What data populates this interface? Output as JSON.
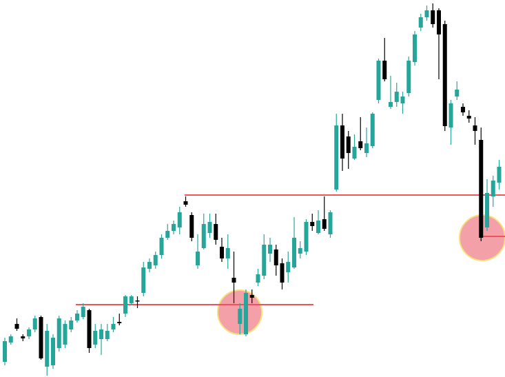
{
  "chart_data": {
    "type": "candlestick",
    "ylim": [
      0,
      547
    ],
    "up_color": "#26a69a",
    "down_color": "#000000",
    "level_color": "#f0525d",
    "open": [
      22,
      50,
      77,
      59,
      59,
      69,
      87,
      15,
      17,
      42,
      47,
      69,
      82,
      87,
      97,
      47,
      55,
      55,
      69,
      80,
      92,
      107,
      111,
      122,
      157,
      162,
      177,
      202,
      212,
      217,
      255,
      235,
      162,
      187,
      209,
      222,
      189,
      172,
      144,
      77,
      62,
      119,
      137,
      147,
      179,
      185,
      165,
      152,
      159,
      179,
      182,
      225,
      209,
      229,
      207,
      272,
      365,
      349,
      317,
      342,
      325,
      335,
      402,
      459,
      392,
      399,
      397,
      412,
      457,
      507,
      522,
      532,
      532,
      512,
      362,
      407,
      392,
      379,
      365,
      344,
      217,
      262,
      282
    ],
    "high": [
      57,
      62,
      85,
      62,
      72,
      89,
      89,
      77,
      62,
      89,
      82,
      87,
      97,
      107,
      99,
      77,
      77,
      77,
      87,
      92,
      119,
      119,
      117,
      167,
      172,
      182,
      207,
      222,
      227,
      247,
      262,
      239,
      207,
      237,
      237,
      237,
      202,
      207,
      182,
      107,
      127,
      127,
      157,
      207,
      202,
      192,
      172,
      182,
      232,
      197,
      229,
      237,
      242,
      262,
      242,
      382,
      382,
      357,
      352,
      377,
      362,
      384,
      462,
      492,
      437,
      427,
      414,
      465,
      502,
      527,
      539,
      542,
      535,
      517,
      402,
      429,
      397,
      387,
      377,
      362,
      287,
      292,
      315
    ],
    "low": [
      17,
      47,
      67,
      52,
      55,
      65,
      25,
      2,
      12,
      37,
      42,
      65,
      79,
      84,
      35,
      42,
      32,
      52,
      65,
      75,
      87,
      104,
      100,
      117,
      152,
      157,
      172,
      199,
      207,
      207,
      247,
      197,
      157,
      185,
      202,
      192,
      167,
      157,
      107,
      62,
      59,
      107,
      132,
      142,
      167,
      147,
      127,
      137,
      157,
      172,
      177,
      212,
      207,
      212,
      202,
      269,
      299,
      302,
      315,
      329,
      319,
      332,
      397,
      429,
      389,
      392,
      382,
      407,
      452,
      502,
      517,
      507,
      432,
      357,
      337,
      402,
      379,
      369,
      337,
      197,
      212,
      247,
      272
    ],
    "close": [
      52,
      59,
      70,
      56,
      69,
      85,
      27,
      67,
      57,
      85,
      77,
      82,
      92,
      102,
      42,
      67,
      69,
      67,
      77,
      78,
      117,
      117,
      110,
      159,
      167,
      177,
      202,
      212,
      222,
      239,
      250,
      202,
      182,
      222,
      225,
      199,
      172,
      187,
      137,
      99,
      122,
      115,
      149,
      192,
      192,
      162,
      137,
      167,
      202,
      187,
      225,
      219,
      227,
      215,
      239,
      365,
      317,
      325,
      334,
      332,
      339,
      382,
      459,
      432,
      399,
      414,
      407,
      459,
      497,
      522,
      532,
      512,
      497,
      364,
      397,
      417,
      384,
      375,
      357,
      202,
      267,
      285,
      305
    ],
    "levels": [
      105,
      264,
      204
    ]
  }
}
